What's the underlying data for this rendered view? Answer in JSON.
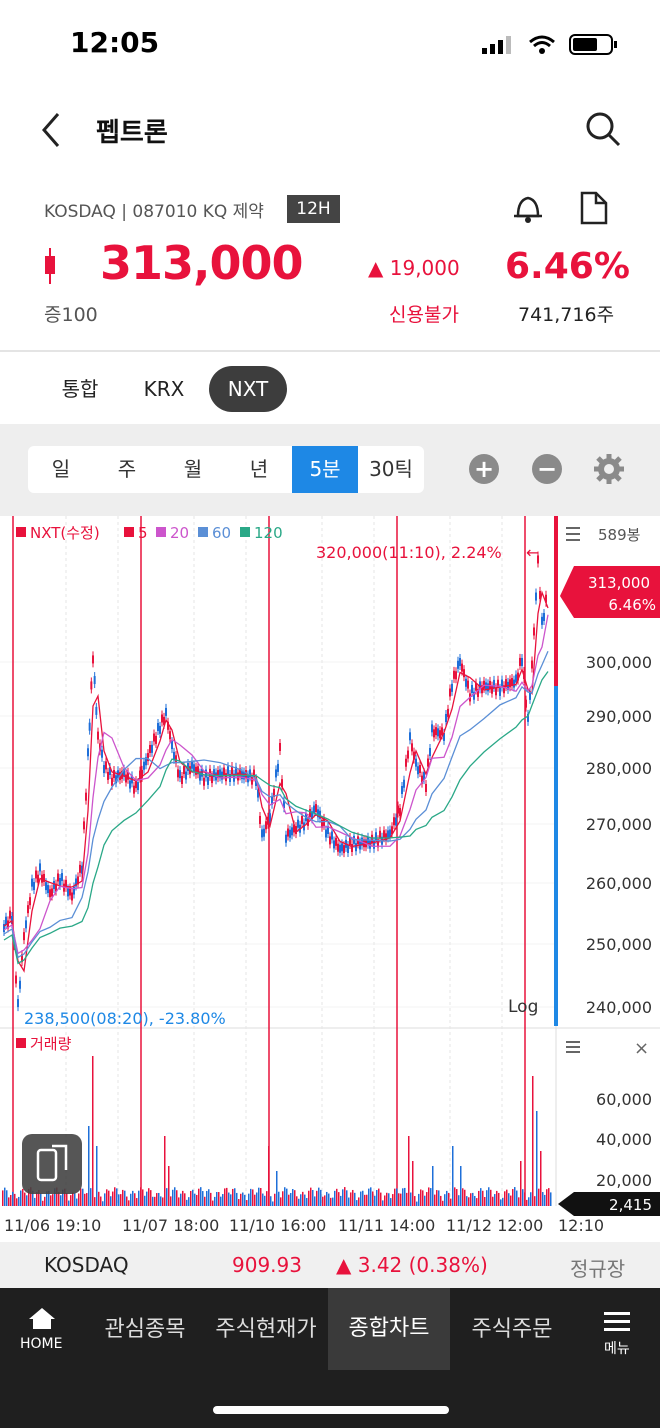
{
  "status": {
    "time": "12:05"
  },
  "header": {
    "title": "펩트론"
  },
  "stock": {
    "info": "KOSDAQ | 087010 KQ 제약",
    "session_badge": "12H",
    "price": "313,000",
    "change": "▲ 19,000",
    "change_pct": "6.46%",
    "margin": "증100",
    "credit": "신용불가",
    "volume": "741,716주"
  },
  "market_tabs": [
    "통합",
    "KRX",
    "NXT"
  ],
  "periods": [
    "일",
    "주",
    "월",
    "년",
    "5분",
    "30틱"
  ],
  "chart": {
    "legend_main": "NXT(수정)",
    "legend_ma": [
      "5",
      "20",
      "60",
      "120"
    ],
    "ma_colors": [
      "#e8123c",
      "#cc55cc",
      "#5b8fd6",
      "#2aa887"
    ],
    "bar_count": "589봉",
    "high_note": "320,000(11:10), 2.24%",
    "low_note": "238,500(08:20), -23.80%",
    "current_price": "313,000",
    "current_pct": "6.46%",
    "log_label": "Log",
    "price_ticks": [
      "300,000",
      "290,000",
      "280,000",
      "270,000",
      "260,000",
      "250,000",
      "240,000"
    ],
    "volume_label": "거래량",
    "volume_ticks": [
      "60,000",
      "40,000",
      "20,000"
    ],
    "current_volume": "2,415",
    "x_ticks": [
      "11/06 19:10",
      "11/07 18:00",
      "11/10 16:00",
      "11/11 14:00",
      "11/12 12:00",
      "12:10"
    ]
  },
  "index": {
    "name": "KOSDAQ",
    "value": "909.93",
    "change": "▲ 3.42 (0.38%)",
    "session": "정규장"
  },
  "nav": {
    "home": "HOME",
    "items": [
      "관심종목",
      "주식현재가",
      "종합차트",
      "주식주문"
    ],
    "menu": "메뉴"
  }
}
